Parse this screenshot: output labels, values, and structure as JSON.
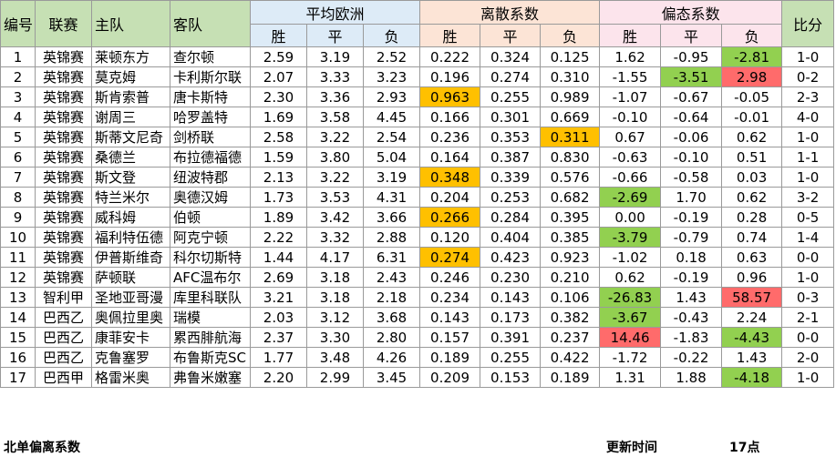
{
  "headers": {
    "no": "编号",
    "league": "联赛",
    "home": "主队",
    "away": "客队",
    "avg_odds": "平均欧洲",
    "dispersion": "离散系数",
    "skew": "偏态系数",
    "score": "比分",
    "win": "胜",
    "draw": "平",
    "lose": "负"
  },
  "rows": [
    {
      "no": "1",
      "league": "英锦赛",
      "home": "莱顿东方",
      "away": "查尔顿",
      "o1": "2.59",
      "o2": "3.19",
      "o3": "2.52",
      "d1": "0.222",
      "d2": "0.324",
      "d3": "0.125",
      "s1": "1.62",
      "s2": "-0.95",
      "s3": "-2.81",
      "score": "1-0"
    },
    {
      "no": "2",
      "league": "英锦赛",
      "home": "莫克姆",
      "away": "卡利斯尔联",
      "o1": "2.07",
      "o2": "3.33",
      "o3": "3.23",
      "d1": "0.196",
      "d2": "0.274",
      "d3": "0.310",
      "s1": "-1.55",
      "s2": "-3.51",
      "s3": "2.98",
      "score": "0-2"
    },
    {
      "no": "3",
      "league": "英锦赛",
      "home": "斯肯索普",
      "away": "唐卡斯特",
      "o1": "2.30",
      "o2": "3.36",
      "o3": "2.93",
      "d1": "0.963",
      "d2": "0.255",
      "d3": "0.989",
      "s1": "-1.07",
      "s2": "-0.67",
      "s3": "-0.05",
      "score": "2-3"
    },
    {
      "no": "4",
      "league": "英锦赛",
      "home": "谢周三",
      "away": "哈罗盖特",
      "o1": "1.69",
      "o2": "3.58",
      "o3": "4.45",
      "d1": "0.166",
      "d2": "0.301",
      "d3": "0.669",
      "s1": "-0.10",
      "s2": "-0.64",
      "s3": "-0.01",
      "score": "4-0"
    },
    {
      "no": "5",
      "league": "英锦赛",
      "home": "斯蒂文尼奇",
      "away": "剑桥联",
      "o1": "2.58",
      "o2": "3.22",
      "o3": "2.54",
      "d1": "0.236",
      "d2": "0.353",
      "d3": "0.311",
      "s1": "0.67",
      "s2": "-0.06",
      "s3": "0.62",
      "score": "1-0"
    },
    {
      "no": "6",
      "league": "英锦赛",
      "home": "桑德兰",
      "away": "布拉德福德",
      "o1": "1.59",
      "o2": "3.80",
      "o3": "5.04",
      "d1": "0.164",
      "d2": "0.387",
      "d3": "0.830",
      "s1": "-0.63",
      "s2": "-0.10",
      "s3": "0.51",
      "score": "1-1"
    },
    {
      "no": "7",
      "league": "英锦赛",
      "home": "斯文登",
      "away": "纽波特郡",
      "o1": "2.13",
      "o2": "3.22",
      "o3": "3.19",
      "d1": "0.348",
      "d2": "0.339",
      "d3": "0.576",
      "s1": "-0.66",
      "s2": "-0.58",
      "s3": "0.03",
      "score": "1-0"
    },
    {
      "no": "8",
      "league": "英锦赛",
      "home": "特兰米尔",
      "away": "奥德汉姆",
      "o1": "1.73",
      "o2": "3.53",
      "o3": "4.31",
      "d1": "0.204",
      "d2": "0.253",
      "d3": "0.682",
      "s1": "-2.69",
      "s2": "1.70",
      "s3": "0.62",
      "score": "3-2"
    },
    {
      "no": "9",
      "league": "英锦赛",
      "home": "威科姆",
      "away": "伯顿",
      "o1": "1.89",
      "o2": "3.42",
      "o3": "3.66",
      "d1": "0.266",
      "d2": "0.284",
      "d3": "0.395",
      "s1": "0.00",
      "s2": "-0.19",
      "s3": "0.28",
      "score": "0-5"
    },
    {
      "no": "10",
      "league": "英锦赛",
      "home": "福利特伍德",
      "away": "阿克宁顿",
      "o1": "2.22",
      "o2": "3.32",
      "o3": "2.88",
      "d1": "0.120",
      "d2": "0.404",
      "d3": "0.385",
      "s1": "-3.79",
      "s2": "-0.79",
      "s3": "0.74",
      "score": "1-4"
    },
    {
      "no": "11",
      "league": "英锦赛",
      "home": "伊普斯维奇",
      "away": "科尔切斯特",
      "o1": "1.44",
      "o2": "4.17",
      "o3": "6.31",
      "d1": "0.274",
      "d2": "0.423",
      "d3": "0.923",
      "s1": "-1.02",
      "s2": "0.18",
      "s3": "0.63",
      "score": "0-0"
    },
    {
      "no": "12",
      "league": "英锦赛",
      "home": "萨顿联",
      "away": "AFC温布尔",
      "o1": "2.69",
      "o2": "3.18",
      "o3": "2.43",
      "d1": "0.246",
      "d2": "0.230",
      "d3": "0.210",
      "s1": "0.62",
      "s2": "-0.19",
      "s3": "0.96",
      "score": "1-0"
    },
    {
      "no": "13",
      "league": "智利甲",
      "home": "圣地亚哥漫",
      "away": "库里科联队",
      "o1": "3.21",
      "o2": "3.18",
      "o3": "2.18",
      "d1": "0.234",
      "d2": "0.143",
      "d3": "0.106",
      "s1": "-26.83",
      "s2": "1.43",
      "s3": "58.57",
      "score": "0-3"
    },
    {
      "no": "14",
      "league": "巴西乙",
      "home": "奥佩拉里奥",
      "away": "瑞模",
      "o1": "2.03",
      "o2": "3.12",
      "o3": "3.68",
      "d1": "0.143",
      "d2": "0.173",
      "d3": "0.382",
      "s1": "-3.67",
      "s2": "-0.43",
      "s3": "2.24",
      "score": "2-1"
    },
    {
      "no": "15",
      "league": "巴西乙",
      "home": "康菲安卡",
      "away": "累西腓航海",
      "o1": "2.37",
      "o2": "3.30",
      "o3": "2.80",
      "d1": "0.157",
      "d2": "0.391",
      "d3": "0.237",
      "s1": "14.46",
      "s2": "-1.83",
      "s3": "-4.43",
      "score": "0-0"
    },
    {
      "no": "16",
      "league": "巴西乙",
      "home": "克鲁塞罗",
      "away": "布鲁斯克SC",
      "o1": "1.77",
      "o2": "3.48",
      "o3": "4.26",
      "d1": "0.189",
      "d2": "0.255",
      "d3": "0.422",
      "s1": "-1.72",
      "s2": "-0.22",
      "s3": "1.43",
      "score": "2-0"
    },
    {
      "no": "17",
      "league": "巴西甲",
      "home": "格雷米奥",
      "away": "弗鲁米嫩塞",
      "o1": "2.20",
      "o2": "2.99",
      "o3": "3.45",
      "d1": "0.209",
      "d2": "0.153",
      "d3": "0.189",
      "s1": "1.31",
      "s2": "1.88",
      "s3": "-4.18",
      "score": "1-0"
    }
  ],
  "highlights": {
    "orange": [
      "3.d1",
      "5.d3",
      "7.d1",
      "9.d1",
      "11.d1"
    ],
    "green": [
      "1.s3",
      "2.s2",
      "8.s1",
      "10.s1",
      "13.s1",
      "14.s1",
      "15.s3",
      "17.s3"
    ],
    "red": [
      "2.s3",
      "13.s3",
      "15.s1"
    ],
    "colors": {
      "orange": "#ffc000",
      "green": "#92d050",
      "red": "#ff6b6b"
    }
  },
  "footer": {
    "title": "北单偏离系数",
    "update_label": "更新时间",
    "update_value": "17点"
  }
}
